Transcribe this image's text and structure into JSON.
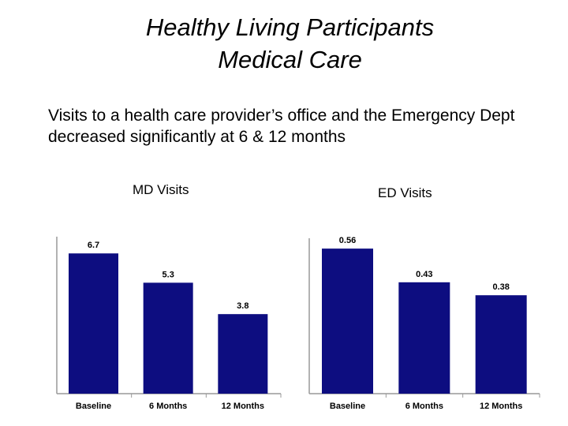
{
  "title": {
    "line1": "Healthy Living Participants",
    "line2": "Medical Care"
  },
  "subtitle": "Visits to a health care provider’s office and the Emergency Dept decreased significantly at 6 & 12 months",
  "colors": {
    "bar": "#0d0d80",
    "axis": "#999999"
  },
  "chart_data": [
    {
      "type": "bar",
      "title": "MD Visits",
      "categories": [
        "Baseline",
        "6 Months",
        "12 Months"
      ],
      "values": [
        6.7,
        5.3,
        3.8
      ],
      "value_labels": [
        "6.7",
        "5.3",
        "3.8"
      ],
      "xlabel": "",
      "ylabel": "",
      "ylim": [
        0,
        7.5
      ]
    },
    {
      "type": "bar",
      "title": "ED Visits",
      "categories": [
        "Baseline",
        "6 Months",
        "12 Months"
      ],
      "values": [
        0.56,
        0.43,
        0.38
      ],
      "value_labels": [
        "0.56",
        "0.43",
        "0.38"
      ],
      "xlabel": "",
      "ylabel": "",
      "ylim": [
        0,
        0.6
      ]
    }
  ]
}
